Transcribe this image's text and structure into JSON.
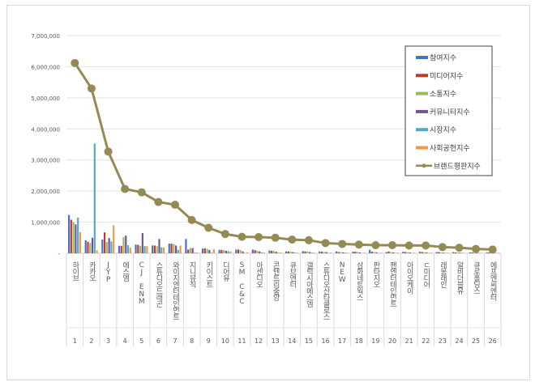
{
  "chart_data": {
    "type": "bar",
    "title": "",
    "xlabel": "",
    "ylabel": "",
    "ylim": [
      0,
      7000000
    ],
    "yticks": [
      "-",
      "1,000,000",
      "2,000,000",
      "3,000,000",
      "4,000,000",
      "5,000,000",
      "6,000,000",
      "7,000,000"
    ],
    "grid": true,
    "legend_position": "top-right",
    "categories": [
      "하이브",
      "카카오",
      "JYP",
      "에스엠",
      "CJ ENM",
      "스튜디오드래곤",
      "와이지엔터테인먼트",
      "지니뮤직",
      "키이스트",
      "디어유",
      "SM C&C",
      "아센디오",
      "콘텐트리중앙",
      "큐브엔터",
      "갤럭시아에스엠",
      "스튜디오산타클로스",
      "NEW",
      "삼화네트웍스",
      "판타지오",
      "팬엔터테인먼트",
      "아이오케이",
      "ㄷ미디어",
      "래몽래인",
      "알비더블유",
      "큐로홀딩스",
      "에프엔씨엔터"
    ],
    "ranks": [
      "1",
      "2",
      "3",
      "4",
      "5",
      "6",
      "7",
      "8",
      "9",
      "10",
      "11",
      "12",
      "13",
      "14",
      "15",
      "16",
      "17",
      "18",
      "19",
      "20",
      "21",
      "22",
      "23",
      "24",
      "25",
      "26"
    ],
    "series": [
      {
        "name": "참여지수",
        "type": "bar",
        "color": "#4472c4",
        "values": [
          1230000,
          420000,
          440000,
          240000,
          280000,
          250000,
          310000,
          460000,
          150000,
          110000,
          120000,
          120000,
          90000,
          60000,
          70000,
          60000,
          60000,
          50000,
          110000,
          40000,
          50000,
          50000,
          40000,
          40000,
          30000,
          30000
        ]
      },
      {
        "name": "미디어지수",
        "type": "bar",
        "color": "#c0392b",
        "values": [
          1080000,
          370000,
          670000,
          240000,
          270000,
          250000,
          310000,
          120000,
          160000,
          110000,
          120000,
          100000,
          80000,
          60000,
          60000,
          50000,
          40000,
          50000,
          50000,
          60000,
          40000,
          40000,
          40000,
          30000,
          30000,
          30000
        ]
      },
      {
        "name": "소통지수",
        "type": "bar",
        "color": "#9bbb59",
        "values": [
          1000000,
          330000,
          360000,
          520000,
          240000,
          230000,
          290000,
          170000,
          140000,
          100000,
          100000,
          80000,
          70000,
          50000,
          60000,
          40000,
          40000,
          40000,
          40000,
          40000,
          30000,
          30000,
          30000,
          30000,
          20000,
          20000
        ]
      },
      {
        "name": "커뮤니티지수",
        "type": "bar",
        "color": "#7051a0",
        "values": [
          930000,
          500000,
          490000,
          570000,
          650000,
          460000,
          250000,
          170000,
          110000,
          80000,
          60000,
          60000,
          50000,
          40000,
          40000,
          40000,
          30000,
          30000,
          30000,
          30000,
          30000,
          30000,
          20000,
          20000,
          20000,
          20000
        ]
      },
      {
        "name": "시장지수",
        "type": "bar",
        "color": "#4bacc6",
        "values": [
          1150000,
          3530000,
          380000,
          260000,
          230000,
          190000,
          110000,
          20000,
          20000,
          70000,
          10000,
          30000,
          20000,
          20000,
          20000,
          10000,
          20000,
          10000,
          10000,
          10000,
          10000,
          10000,
          10000,
          10000,
          10000,
          10000
        ]
      },
      {
        "name": "사회공헌지수",
        "type": "bar",
        "color": "#f79646",
        "values": [
          680000,
          100000,
          900000,
          180000,
          230000,
          190000,
          250000,
          30000,
          130000,
          50000,
          30000,
          30000,
          30000,
          20000,
          20000,
          20000,
          20000,
          20000,
          20000,
          20000,
          20000,
          20000,
          20000,
          10000,
          10000,
          10000
        ]
      },
      {
        "name": "브랜드평판지수",
        "type": "line",
        "color": "#948a54",
        "values": [
          6120000,
          5300000,
          3270000,
          2070000,
          1960000,
          1650000,
          1560000,
          1070000,
          820000,
          620000,
          530000,
          520000,
          500000,
          440000,
          420000,
          330000,
          300000,
          280000,
          260000,
          260000,
          250000,
          250000,
          200000,
          180000,
          140000,
          120000
        ]
      }
    ]
  }
}
